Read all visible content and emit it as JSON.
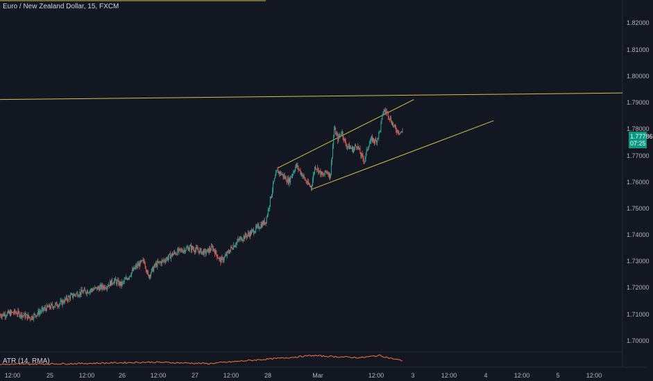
{
  "symbol_title": "Euro / New Zealand Dollar, 15, FXCM",
  "indicator_label": "ATR (14, RMA)",
  "last_price": {
    "value": "1.77786",
    "countdown": "07:25"
  },
  "price_axis": [
    "1.82000",
    "1.81000",
    "1.80000",
    "1.79000",
    "1.78000",
    "1.77000",
    "1.76000",
    "1.75000",
    "1.74000",
    "1.73000",
    "1.72000",
    "1.71000",
    "1.70000"
  ],
  "time_axis": [
    "12:00",
    "25",
    "12:00",
    "26",
    "12:00",
    "27",
    "12:00",
    "28",
    "Mar",
    "12:00",
    "3",
    "12:00",
    "4",
    "12:00",
    "5",
    "12:00"
  ],
  "colors": {
    "background": "#131722",
    "up": "#26a69a",
    "down": "#ef5350",
    "drawing": "#d4c24a",
    "atr": "#ff7043",
    "badge": "#089981"
  },
  "chart_data": {
    "type": "candlestick",
    "y_range": [
      1.695,
      1.83
    ],
    "series": [
      {
        "name": "EURNZD",
        "points": [
          [
            0,
            1.7095
          ],
          [
            4,
            1.7105
          ],
          [
            8,
            1.7085
          ],
          [
            12,
            1.712
          ],
          [
            16,
            1.714
          ],
          [
            18,
            1.716
          ],
          [
            20,
            1.7175
          ],
          [
            24,
            1.719
          ],
          [
            28,
            1.7205
          ],
          [
            30,
            1.7225
          ],
          [
            32,
            1.721
          ],
          [
            34,
            1.7245
          ],
          [
            36,
            1.728
          ],
          [
            38,
            1.73
          ],
          [
            39,
            1.724
          ],
          [
            41,
            1.7285
          ],
          [
            43,
            1.73
          ],
          [
            46,
            1.733
          ],
          [
            50,
            1.735
          ],
          [
            54,
            1.733
          ],
          [
            56,
            1.735
          ],
          [
            58,
            1.73
          ],
          [
            59,
            1.731
          ],
          [
            61,
            1.735
          ],
          [
            63,
            1.738
          ],
          [
            66,
            1.7405
          ],
          [
            70,
            1.745
          ],
          [
            71,
            1.752
          ],
          [
            72,
            1.759
          ],
          [
            73,
            1.764
          ],
          [
            74,
            1.763
          ],
          [
            76,
            1.76
          ],
          [
            78,
            1.766
          ],
          [
            79,
            1.764
          ],
          [
            81,
            1.759
          ],
          [
            82,
            1.758
          ],
          [
            83,
            1.766
          ],
          [
            84,
            1.764
          ],
          [
            85,
            1.762
          ],
          [
            86,
            1.764
          ],
          [
            87,
            1.762
          ],
          [
            88,
            1.78
          ],
          [
            89,
            1.776
          ],
          [
            90,
            1.779
          ],
          [
            91,
            1.774
          ],
          [
            92,
            1.773
          ],
          [
            93,
            1.772
          ],
          [
            94,
            1.774
          ],
          [
            95,
            1.77
          ],
          [
            96,
            1.768
          ],
          [
            97,
            1.774
          ],
          [
            98,
            1.776
          ],
          [
            99,
            1.775
          ],
          [
            100,
            1.779
          ],
          [
            101,
            1.787
          ],
          [
            102,
            1.786
          ],
          [
            103,
            1.783
          ],
          [
            104,
            1.78
          ],
          [
            105,
            1.779
          ],
          [
            106,
            1.7785
          ]
        ]
      },
      {
        "name": "ATR",
        "points": [
          [
            0,
            0.0016
          ],
          [
            20,
            0.0017
          ],
          [
            40,
            0.0019
          ],
          [
            55,
            0.0017
          ],
          [
            65,
            0.0021
          ],
          [
            73,
            0.0024
          ],
          [
            78,
            0.0026
          ],
          [
            82,
            0.0028
          ],
          [
            86,
            0.0027
          ],
          [
            90,
            0.0026
          ],
          [
            95,
            0.0025
          ],
          [
            100,
            0.0028
          ],
          [
            103,
            0.0024
          ],
          [
            106,
            0.0021
          ]
        ]
      }
    ],
    "drawings": [
      {
        "kind": "horizontal-trend",
        "from": [
          0,
          1.791
        ],
        "to": [
          170,
          1.7935
        ]
      },
      {
        "kind": "channel-top",
        "from": [
          73,
          1.765
        ],
        "to": [
          109,
          1.791
        ]
      },
      {
        "kind": "channel-bottom",
        "from": [
          82,
          1.757
        ],
        "to": [
          130,
          1.783
        ]
      }
    ]
  }
}
